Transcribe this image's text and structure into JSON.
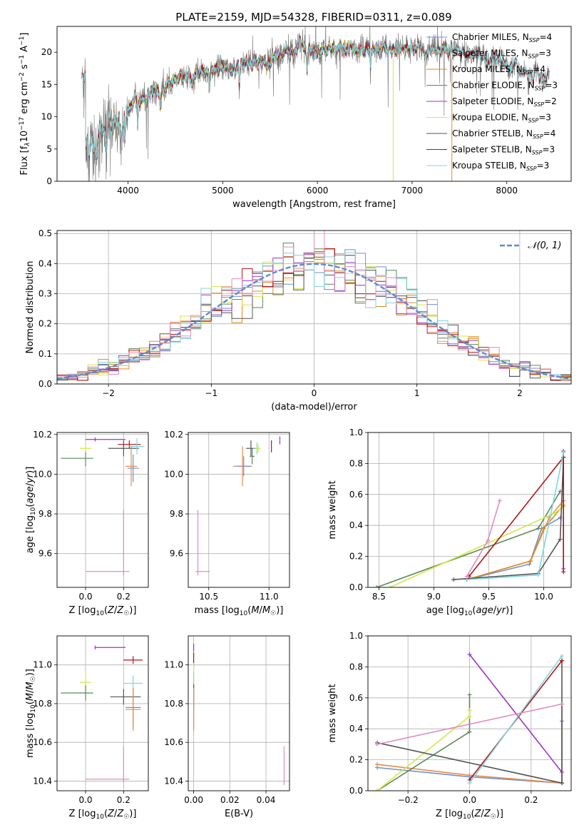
{
  "title": "PLATE=2159, MJD=54328, FIBERID=0311, z=0.089",
  "colors": {
    "Chabrier MILES": "#6f8fcf",
    "Salpeter MILES": "#e68a4a",
    "Kroupa MILES": "#d98c1c",
    "Chabrier ELODIE": "#5a8a5a",
    "Salpeter ELODIE": "#9a36c0",
    "Kroupa ELODIE": "#d6e645",
    "Chabrier STELIB": "#555555",
    "Salpeter STELIB": "#b01515",
    "Kroupa STELIB": "#7fd6dc",
    "pink": "#e08cc0"
  },
  "chart_data": [
    {
      "id": "spectrum",
      "type": "line",
      "xlabel": "wavelength [Angstrom, rest frame]",
      "ylabel": "Flux [f_λ 10^-17 erg cm^-2 s^-1 A^-1]",
      "xlim": [
        3250,
        8680
      ],
      "ylim": [
        0,
        24
      ],
      "xticks": [
        4000,
        5000,
        6000,
        7000,
        8000
      ],
      "yticks": [
        0,
        5,
        10,
        15,
        20
      ],
      "legend_position": "upper right",
      "legend": [
        {
          "label": "Chabrier MILES, N",
          "sub": "SSP",
          "suffix": "=4",
          "key": "Chabrier MILES"
        },
        {
          "label": "Salpeter MILES, N",
          "sub": "SSP",
          "suffix": "=3",
          "key": "Salpeter MILES"
        },
        {
          "label": "Kroupa MILES, N",
          "sub": "SSP",
          "suffix": "=4",
          "key": "Kroupa MILES"
        },
        {
          "label": "Chabrier ELODIE, N",
          "sub": "SSP",
          "suffix": "=3",
          "key": "Chabrier ELODIE"
        },
        {
          "label": "Salpeter ELODIE, N",
          "sub": "SSP",
          "suffix": "=2",
          "key": "Salpeter ELODIE"
        },
        {
          "label": "Kroupa ELODIE, N",
          "sub": "SSP",
          "suffix": "=3",
          "key": "Kroupa ELODIE"
        },
        {
          "label": "Chabrier STELIB, N",
          "sub": "SSP",
          "suffix": "=4",
          "key": "Chabrier STELIB"
        },
        {
          "label": "Salpeter STELIB, N",
          "sub": "SSP",
          "suffix": "=3",
          "key": "Salpeter STELIB"
        },
        {
          "label": "Kroupa STELIB, N",
          "sub": "SSP",
          "suffix": "=3",
          "key": "Kroupa STELIB"
        }
      ],
      "continuum": [
        [
          3550,
          6
        ],
        [
          3700,
          7
        ],
        [
          3850,
          7.5
        ],
        [
          3950,
          9
        ],
        [
          4050,
          12
        ],
        [
          4250,
          13.5
        ],
        [
          4500,
          15.5
        ],
        [
          5000,
          17.5
        ],
        [
          5500,
          19
        ],
        [
          5800,
          20.5
        ],
        [
          6000,
          20.5
        ],
        [
          6500,
          20.5
        ],
        [
          7000,
          20.5
        ],
        [
          7500,
          20
        ],
        [
          8000,
          18.5
        ],
        [
          8400,
          16
        ]
      ],
      "data_start": 3510,
      "data_end": 8450,
      "spikes_vertical": [
        [
          6800,
          "Kroupa ELODIE"
        ],
        [
          7420,
          "Salpeter MILES"
        ]
      ]
    },
    {
      "id": "residuals",
      "type": "histogram",
      "xlabel": "(data-model)/error",
      "ylabel": "Normed distribution",
      "xlim": [
        -2.5,
        2.5
      ],
      "ylim": [
        0,
        0.51
      ],
      "xticks": [
        -2,
        -1,
        0,
        1,
        2
      ],
      "yticks": [
        0.0,
        0.1,
        0.2,
        0.3,
        0.4,
        0.5
      ],
      "bin_width": 0.1,
      "gaussian_label": "𝒩(0, 1)",
      "gaussian_color": "#5b8bd6",
      "legend_position": "upper right"
    },
    {
      "id": "age_vs_Z",
      "type": "errorbar",
      "xlabel": "Z [log10(Z/Z☉)]",
      "ylabel": "age [log10(age/yr)]",
      "xlim": [
        -0.15,
        0.33
      ],
      "ylim": [
        9.43,
        10.21
      ],
      "xticks": [
        0.0,
        0.2
      ],
      "yticks": [
        9.6,
        9.8,
        10.0,
        10.2
      ],
      "points": [
        {
          "key": "Chabrier ELODIE",
          "x": 0.0,
          "y": 10.08,
          "xerr": [
            0.13,
            0.04
          ],
          "yerr": 0.04
        },
        {
          "key": "Kroupa ELODIE",
          "x": 0.0,
          "y": 10.13,
          "xerr": 0.03,
          "yerr": 0.02
        },
        {
          "key": "Salpeter ELODIE",
          "x": 0.05,
          "y": 10.175,
          "xerr": [
            0.05,
            0.16
          ],
          "yerr": 0.01
        },
        {
          "key": "Chabrier STELIB",
          "x": 0.2,
          "y": 10.13,
          "xerr": 0.08,
          "yerr": 0.04
        },
        {
          "key": "Salpeter STELIB",
          "x": 0.23,
          "y": 10.15,
          "xerr": 0.06,
          "yerr": 0.02
        },
        {
          "key": "Kroupa STELIB",
          "x": 0.27,
          "y": 10.14,
          "xerr": 0.04,
          "yerr": 0.04
        },
        {
          "key": "Chabrier MILES",
          "x": 0.25,
          "y": 10.03,
          "xerr": 0.03,
          "yerr": 0.07
        },
        {
          "key": "Salpeter MILES",
          "x": 0.24,
          "y": 10.04,
          "xerr": 0.03,
          "yerr": 0.1
        },
        {
          "key": "pink",
          "x": 0.2,
          "y": 9.51,
          "xerr": [
            0.2,
            0.03
          ],
          "yerr": [
            0.02,
            0.31
          ]
        }
      ]
    },
    {
      "id": "age_vs_mass",
      "type": "errorbar",
      "xlabel": "mass [log10(M/M☉)]",
      "ylabel": "",
      "xlim": [
        10.33,
        11.17
      ],
      "ylim": [
        9.43,
        10.21
      ],
      "xticks": [
        10.5,
        11.0
      ],
      "yticks": [
        9.6,
        9.8,
        10.0,
        10.2
      ],
      "points": [
        {
          "key": "Salpeter MILES",
          "x": 10.78,
          "y": 10.04,
          "xerr": 0.08,
          "yerr": 0.1
        },
        {
          "key": "Chabrier MILES",
          "x": 10.79,
          "y": 10.04,
          "xerr": 0.06,
          "yerr": 0.05
        },
        {
          "key": "Chabrier STELIB",
          "x": 10.85,
          "y": 10.13,
          "xerr": 0.04,
          "yerr": 0.04
        },
        {
          "key": "Chabrier ELODIE",
          "x": 10.86,
          "y": 10.09,
          "xerr": 0.02,
          "yerr": 0.04
        },
        {
          "key": "Kroupa STELIB",
          "x": 10.9,
          "y": 10.13,
          "xerr": 0.03,
          "yerr": 0.03
        },
        {
          "key": "Kroupa ELODIE",
          "x": 10.91,
          "y": 10.13,
          "xerr": 0.02,
          "yerr": 0.02
        },
        {
          "key": "Salpeter STELIB",
          "x": 11.02,
          "y": 10.14,
          "xerr": 0.0,
          "yerr": 0.03
        },
        {
          "key": "Salpeter ELODIE",
          "x": 11.09,
          "y": 10.17,
          "xerr": 0.0,
          "yerr": 0.02
        },
        {
          "key": "pink",
          "x": 10.41,
          "y": 9.51,
          "xerr": [
            0.02,
            0.1
          ],
          "yerr": [
            0.02,
            0.31
          ]
        }
      ]
    },
    {
      "id": "weight_vs_age",
      "type": "line",
      "xlabel": "age [log10(age/yr)]",
      "ylabel": "mass weight",
      "xlim": [
        8.4,
        10.25
      ],
      "ylim": [
        0.0,
        1.0
      ],
      "xticks": [
        8.5,
        9.0,
        9.5,
        10.0
      ],
      "yticks": [
        0.0,
        0.2,
        0.4,
        0.6,
        0.8,
        1.0
      ],
      "series": [
        {
          "key": "Chabrier MILES",
          "x": [
            9.3,
            9.87,
            9.98,
            10.15
          ],
          "y": [
            0.05,
            0.15,
            0.38,
            0.45
          ]
        },
        {
          "key": "Salpeter MILES",
          "x": [
            9.3,
            9.88,
            10.05,
            10.18
          ],
          "y": [
            0.05,
            0.17,
            0.45,
            0.56
          ]
        },
        {
          "key": "Kroupa MILES",
          "x": [
            9.3,
            9.88,
            10.0,
            10.18
          ],
          "y": [
            0.05,
            0.17,
            0.38,
            0.53
          ]
        },
        {
          "key": "Chabrier ELODIE",
          "x": [
            8.48,
            9.95,
            10.15
          ],
          "y": [
            0.0,
            0.38,
            0.62
          ]
        },
        {
          "key": "Salpeter ELODIE",
          "x": [
            10.18,
            10.18
          ],
          "y": [
            0.12,
            0.88
          ]
        },
        {
          "key": "Kroupa ELODIE",
          "x": [
            8.6,
            10.1,
            10.18
          ],
          "y": [
            0.0,
            0.48,
            0.52
          ]
        },
        {
          "key": "Chabrier STELIB",
          "x": [
            9.18,
            9.95,
            10.15,
            10.18
          ],
          "y": [
            0.05,
            0.09,
            0.31,
            0.84
          ]
        },
        {
          "key": "Salpeter STELIB",
          "x": [
            9.32,
            10.18,
            10.18
          ],
          "y": [
            0.07,
            0.84,
            0.1
          ]
        },
        {
          "key": "Kroupa STELIB",
          "x": [
            9.3,
            9.95,
            10.18
          ],
          "y": [
            0.05,
            0.08,
            0.87
          ]
        },
        {
          "key": "pink",
          "x": [
            9.3,
            9.49,
            9.6
          ],
          "y": [
            0.07,
            0.3,
            0.56
          ]
        }
      ]
    },
    {
      "id": "mass_vs_Z",
      "type": "errorbar",
      "xlabel": "Z [log10(Z/Z☉)]",
      "ylabel": "mass [log10(M/M☉)]",
      "xlim": [
        -0.15,
        0.33
      ],
      "ylim": [
        10.35,
        11.15
      ],
      "xticks": [
        0.0,
        0.2
      ],
      "yticks": [
        10.4,
        10.6,
        10.8,
        11.0
      ],
      "points": [
        {
          "key": "Salpeter ELODIE",
          "x": 0.05,
          "y": 11.09,
          "xerr": [
            0.0,
            0.16
          ],
          "yerr": 0.01
        },
        {
          "key": "Salpeter STELIB",
          "x": 0.25,
          "y": 11.025,
          "xerr": 0.05,
          "yerr": 0.02
        },
        {
          "key": "Kroupa ELODIE",
          "x": 0.0,
          "y": 10.91,
          "xerr": 0.03,
          "yerr": 0.06
        },
        {
          "key": "Kroupa STELIB",
          "x": 0.25,
          "y": 10.905,
          "xerr": 0.05,
          "yerr": 0.04
        },
        {
          "key": "Chabrier ELODIE",
          "x": 0.0,
          "y": 10.855,
          "xerr": [
            0.13,
            0.04
          ],
          "yerr": 0.04
        },
        {
          "key": "Chabrier STELIB",
          "x": 0.2,
          "y": 10.835,
          "xerr": [
            0.07,
            0.09
          ],
          "yerr": 0.04
        },
        {
          "key": "Chabrier MILES",
          "x": 0.25,
          "y": 10.78,
          "xerr": 0.04,
          "yerr": 0.1
        },
        {
          "key": "Salpeter MILES",
          "x": 0.25,
          "y": 10.77,
          "xerr": 0.04,
          "yerr": 0.11
        },
        {
          "key": "pink",
          "x": 0.2,
          "y": 10.41,
          "xerr": [
            0.2,
            0.03
          ],
          "yerr": [
            0.02,
            0.17
          ]
        }
      ]
    },
    {
      "id": "mass_vs_EBV",
      "type": "errorbar",
      "xlabel": "E(B-V)",
      "ylabel": "",
      "xlim": [
        -0.003,
        0.053
      ],
      "ylim": [
        10.35,
        11.15
      ],
      "xticks": [
        0.0,
        0.02,
        0.04
      ],
      "yticks": [
        10.4,
        10.6,
        10.8,
        11.0
      ],
      "points": [
        {
          "key": "Salpeter ELODIE",
          "x": 0.0,
          "y": 11.09,
          "xerr": 0.0,
          "yerr": 0.02
        },
        {
          "key": "Salpeter STELIB",
          "x": 0.0,
          "y": 11.025,
          "xerr": 0.0,
          "yerr": 0.04
        },
        {
          "key": "Kroupa ELODIE",
          "x": 0.0,
          "y": 10.91,
          "xerr": 0.0,
          "yerr": 0.1
        },
        {
          "key": "Kroupa STELIB",
          "x": 0.0,
          "y": 10.9,
          "xerr": 0.0,
          "yerr": 0.06
        },
        {
          "key": "Chabrier STELIB",
          "x": 0.0,
          "y": 10.84,
          "xerr": 0.0,
          "yerr": 0.06
        },
        {
          "key": "Chabrier MILES",
          "x": 0.0,
          "y": 10.78,
          "xerr": 0.0,
          "yerr": 0.1
        },
        {
          "key": "Salpeter MILES",
          "x": 0.0,
          "y": 10.77,
          "xerr": 0.0,
          "yerr": 0.11
        },
        {
          "key": "pink",
          "x": 0.05,
          "y": 10.48,
          "xerr": 0.0,
          "yerr": 0.1
        }
      ]
    },
    {
      "id": "weight_vs_Z",
      "type": "line",
      "xlabel": "Z [log10(Z/Z☉)]",
      "ylabel": "mass weight",
      "xlim": [
        -0.33,
        0.33
      ],
      "ylim": [
        0.0,
        1.0
      ],
      "xticks": [
        -0.2,
        0.0,
        0.2
      ],
      "yticks": [
        0.0,
        0.2,
        0.4,
        0.6,
        0.8,
        1.0
      ],
      "series": [
        {
          "key": "Chabrier MILES",
          "x": [
            -0.3,
            0.0,
            0.3,
            0.3
          ],
          "y": [
            0.15,
            0.09,
            0.05,
            0.45
          ]
        },
        {
          "key": "Salpeter MILES",
          "x": [
            -0.3,
            0.0,
            0.3,
            0.3
          ],
          "y": [
            0.17,
            0.1,
            0.05,
            0.56
          ]
        },
        {
          "key": "Chabrier ELODIE",
          "x": [
            -0.3,
            0.0,
            0.0
          ],
          "y": [
            0.0,
            0.38,
            0.62
          ]
        },
        {
          "key": "Kroupa ELODIE",
          "x": [
            -0.3,
            0.0,
            0.0
          ],
          "y": [
            0.0,
            0.48,
            0.52
          ]
        },
        {
          "key": "Salpeter ELODIE",
          "x": [
            0.0,
            0.3
          ],
          "y": [
            0.88,
            0.12
          ]
        },
        {
          "key": "Chabrier STELIB",
          "x": [
            -0.3,
            0.3,
            0.3
          ],
          "y": [
            0.31,
            0.05,
            0.84
          ]
        },
        {
          "key": "Salpeter STELIB",
          "x": [
            0.0,
            0.3
          ],
          "y": [
            0.07,
            0.84
          ]
        },
        {
          "key": "Kroupa STELIB",
          "x": [
            0.0,
            0.3
          ],
          "y": [
            0.05,
            0.87
          ]
        },
        {
          "key": "pink",
          "x": [
            -0.3,
            0.3
          ],
          "y": [
            0.3,
            0.56
          ]
        }
      ]
    }
  ]
}
